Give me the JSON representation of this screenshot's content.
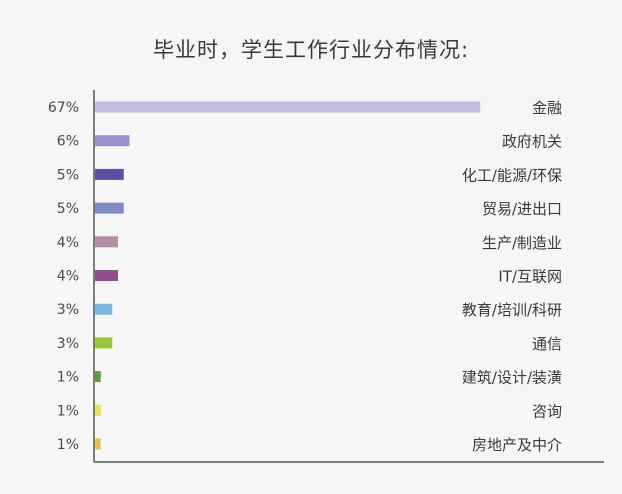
{
  "chart_data": {
    "type": "bar",
    "orientation": "horizontal",
    "title": "毕业时，学生工作行业分布情况:",
    "xlabel": "",
    "ylabel": "",
    "xlim": [
      0,
      100
    ],
    "grid": false,
    "categories": [
      "金融",
      "政府机关",
      "化工/能源/环保",
      "贸易/进出口",
      "生产/制造业",
      "IT/互联网",
      "教育/培训/科研",
      "通信",
      "建筑/设计/装潢",
      "咨询",
      "房地产及中介"
    ],
    "values": [
      67,
      6,
      5,
      5,
      4,
      4,
      3,
      3,
      1,
      1,
      1
    ],
    "value_labels": [
      "67%",
      "6%",
      "5%",
      "5%",
      "4%",
      "4%",
      "3%",
      "3%",
      "1%",
      "1%",
      "1%"
    ],
    "bar_colors": [
      "#c2bde3",
      "#9d93cc",
      "#5b4ea3",
      "#7f8dc4",
      "#b38fa6",
      "#8e4f8c",
      "#7cb8e0",
      "#9ac43a",
      "#5e9c3e",
      "#e8e04c",
      "#e6bd57"
    ]
  }
}
